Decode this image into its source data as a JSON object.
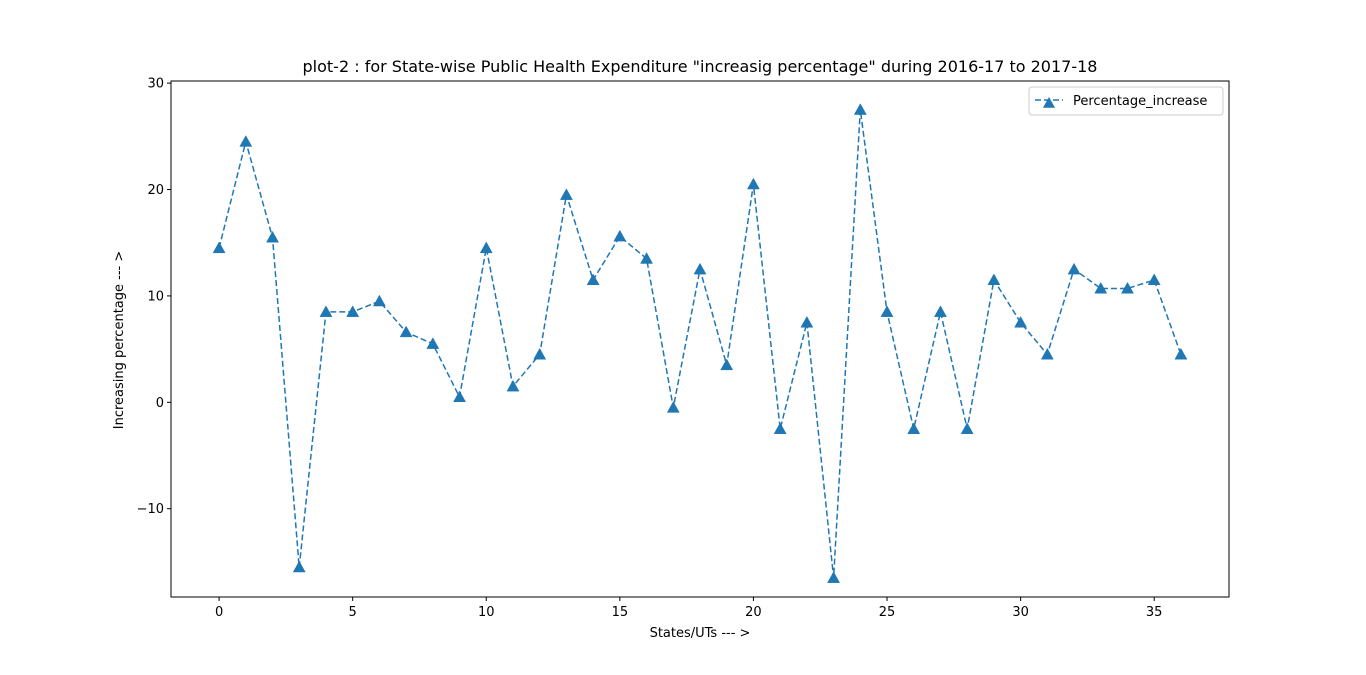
{
  "chart_data": {
    "type": "line",
    "title": "plot-2 : for State-wise Public Health Expenditure \"increasig percentage\" during 2016-17 to 2017-18",
    "xlabel": "States/UTs --- >",
    "ylabel": "Increasing percentage --- >",
    "xlim": [
      -1.8,
      37.8
    ],
    "ylim": [
      -18.3,
      30.2
    ],
    "xticks": [
      0,
      5,
      10,
      15,
      20,
      25,
      30,
      35
    ],
    "yticks": [
      -10,
      0,
      10,
      20,
      30
    ],
    "xtick_labels": [
      "0",
      "5",
      "10",
      "15",
      "20",
      "25",
      "30",
      "35"
    ],
    "ytick_labels": [
      "−10",
      "0",
      "10",
      "20",
      "30"
    ],
    "grid": false,
    "legend_position": "top-right",
    "series": [
      {
        "name": "Percentage_increase",
        "color": "#1f77b4",
        "line_style": "dashed",
        "marker": "triangle-up",
        "x": [
          0,
          1,
          2,
          3,
          4,
          5,
          6,
          7,
          8,
          9,
          10,
          11,
          12,
          13,
          14,
          15,
          16,
          17,
          18,
          19,
          20,
          21,
          22,
          23,
          24,
          25,
          26,
          27,
          28,
          29,
          30,
          31,
          32,
          33,
          34,
          35,
          36
        ],
        "values": [
          14.5,
          24.5,
          15.5,
          -15.5,
          8.5,
          8.5,
          9.5,
          6.6,
          5.5,
          0.5,
          14.5,
          1.5,
          4.5,
          19.5,
          11.5,
          15.6,
          13.5,
          -0.5,
          12.5,
          3.5,
          20.5,
          -2.5,
          7.5,
          -16.5,
          27.5,
          8.5,
          -2.5,
          8.5,
          -2.5,
          11.5,
          7.5,
          4.5,
          12.5,
          10.7,
          10.7,
          11.5,
          4.5
        ]
      }
    ]
  }
}
